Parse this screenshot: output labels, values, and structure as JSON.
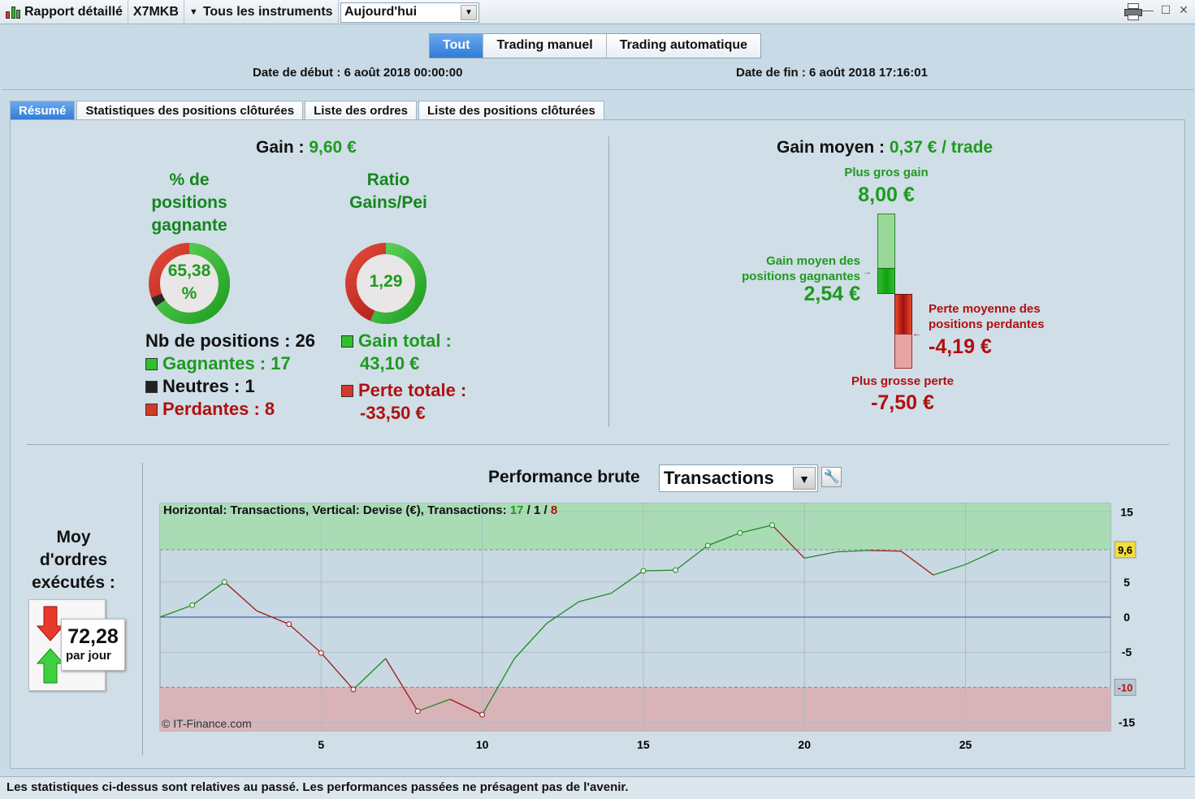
{
  "titlebar": {
    "report_label": "Rapport détaillé",
    "account": "X7MKB",
    "instruments": "Tous les instruments",
    "period": "Aujourd'hui"
  },
  "filters": {
    "tabs": [
      {
        "label": "Tout",
        "active": true
      },
      {
        "label": "Trading manuel",
        "active": false
      },
      {
        "label": "Trading automatique",
        "active": false
      }
    ]
  },
  "dates": {
    "start": "Date de début : 6 août 2018 00:00:00",
    "end": "Date de fin : 6 août 2018 17:16:01"
  },
  "main_tabs": [
    {
      "label": "Résumé",
      "active": true
    },
    {
      "label": "Statistiques des positions clôturées",
      "active": false
    },
    {
      "label": "Liste des ordres",
      "active": false
    },
    {
      "label": "Liste des positions clôturées",
      "active": false
    }
  ],
  "summary": {
    "gain_label": "Gain :",
    "gain_value": "9,60 €",
    "win_pct_title_1": "% de",
    "win_pct_title_2": "positions",
    "win_pct_title_3": "gagnante",
    "win_pct_value_1": "65,38",
    "win_pct_value_2": "%",
    "win_pct_fraction": 0.6538,
    "ratio_title_1": "Ratio",
    "ratio_title_2": "Gains/Pei",
    "ratio_value": "1,29",
    "ratio_fraction": 0.5627,
    "nb_positions": "Nb de positions : 26",
    "gagnantes": "Gagnantes : 17",
    "neutres": "Neutres : 1",
    "perdantes": "Perdantes : 8",
    "gain_total_label": "Gain total :",
    "gain_total_value": "43,10 €",
    "perte_total_label": "Perte totale :",
    "perte_total_value": "-33,50 €"
  },
  "average": {
    "title_label": "Gain moyen :",
    "title_value": "0,37 € / trade",
    "biggest_gain_label": "Plus gros gain",
    "biggest_gain_value": "8,00 €",
    "avg_win_label_1": "Gain moyen des",
    "avg_win_label_2": "positions gagnantes",
    "avg_win_value": "2,54 €",
    "avg_loss_label_1": "Perte moyenne des",
    "avg_loss_label_2": "positions perdantes",
    "avg_loss_value": "-4,19 €",
    "biggest_loss_label": "Plus grosse perte",
    "biggest_loss_value": "-7,50 €"
  },
  "orders": {
    "title_1": "Moy",
    "title_2": "d'ordres",
    "title_3": "exécutés :",
    "value": "72,28",
    "unit": "par jour"
  },
  "performance": {
    "label": "Performance brute",
    "selector": "Transactions"
  },
  "colors": {
    "green": "#1e9a1e",
    "red": "#b01010",
    "accent_blue": "#2f7bd6"
  },
  "chart_data": {
    "type": "line",
    "caption_prefix": "Horizontal: Transactions, Vertical: Devise (€), Transactions:",
    "caption_wins": "17",
    "caption_neutral": "1",
    "caption_losses": "8",
    "sep": "/",
    "watermark": "© IT-Finance.com",
    "x": [
      0,
      1,
      2,
      3,
      4,
      5,
      6,
      7,
      8,
      9,
      10,
      11,
      12,
      13,
      14,
      15,
      16,
      17,
      18,
      19,
      20,
      21,
      22,
      23,
      24,
      25,
      26
    ],
    "y": [
      0,
      1.7,
      5,
      0.9,
      -1,
      -5.1,
      -10.3,
      -5.9,
      -13.4,
      -11.7,
      -13.9,
      -5.9,
      -0.9,
      2.2,
      3.4,
      6.6,
      6.7,
      10.2,
      12,
      13.1,
      8.4,
      9.3,
      9.5,
      9.4,
      6,
      7.5,
      9.6
    ],
    "segment_colors": [
      "green",
      "green",
      "red",
      "red",
      "red",
      "red",
      "green",
      "red",
      "green",
      "red",
      "green",
      "green",
      "green",
      "green",
      "green",
      "green",
      "green",
      "green",
      "green",
      "red",
      "green",
      "green",
      "red",
      "red",
      "green",
      "green"
    ],
    "markers": [
      1,
      2,
      4,
      5,
      6,
      8,
      10,
      15,
      16,
      17,
      18,
      19
    ],
    "xticks": [
      5,
      10,
      15,
      20,
      25
    ],
    "yticks": [
      15,
      5,
      0,
      -5,
      -15
    ],
    "xlim": [
      0,
      29.5
    ],
    "ylim": [
      -16.2,
      16.2
    ],
    "upper_threshold": 9.6,
    "lower_threshold": -10,
    "upper_label": "9,6",
    "lower_label": "-10",
    "grid": true
  }
}
